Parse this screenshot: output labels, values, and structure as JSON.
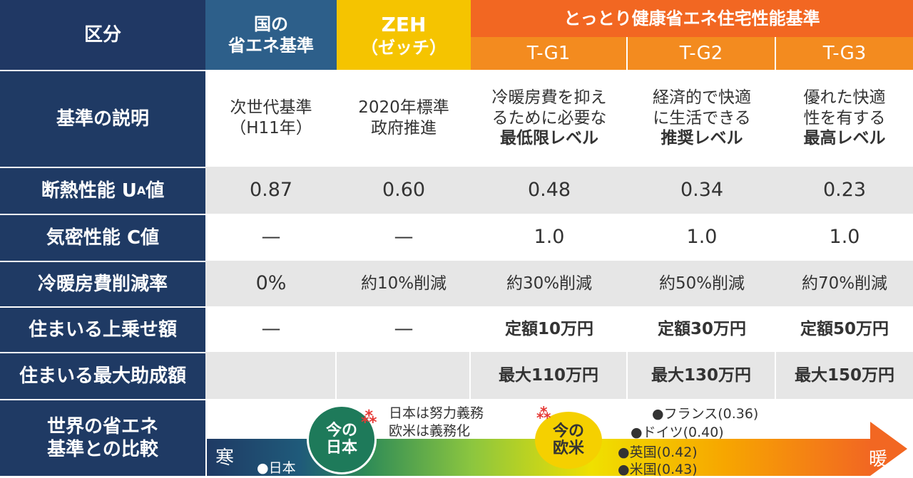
{
  "headers": {
    "category": "区分",
    "national": [
      "国の",
      "省エネ基準"
    ],
    "zeh": [
      "ZEH",
      "（ゼッチ）"
    ],
    "tottori": "とっとり健康省エネ住宅性能基準",
    "tg1": "T-G1",
    "tg2": "T-G2",
    "tg3": "T-G3"
  },
  "rows": {
    "desc": {
      "label": "基準の説明",
      "national": [
        "次世代基準",
        "（H11年）"
      ],
      "zeh": [
        "2020年標準",
        "政府推進"
      ],
      "tg1": [
        "冷暖房費を抑え",
        "るために必要な",
        "最低限レベル"
      ],
      "tg2": [
        "経済的で快適",
        "に生活できる",
        "推奨レベル"
      ],
      "tg3": [
        "優れた快適",
        "性を有する",
        "最高レベル"
      ]
    },
    "ua": {
      "label_main": "断熱性能 U",
      "label_sub": "A",
      "label_tail": "値",
      "national": "0.87",
      "zeh": "0.60",
      "tg1": "0.48",
      "tg2": "0.34",
      "tg3": "0.23"
    },
    "c": {
      "label": "気密性能 C値",
      "national": "—",
      "zeh": "—",
      "tg1": "1.0",
      "tg2": "1.0",
      "tg3": "1.0"
    },
    "reduce": {
      "label": "冷暖房費削減率",
      "national": "0%",
      "zeh": "約10%削減",
      "tg1": "約30%削減",
      "tg2": "約50%削減",
      "tg3": "約70%削減"
    },
    "extra": {
      "label": "住まいる上乗せ額",
      "national": "—",
      "zeh": "—",
      "tg1": "定額10万円",
      "tg2": "定額30万円",
      "tg3": "定額50万円"
    },
    "max": {
      "label": "住まいる最大助成額",
      "national": "",
      "zeh": "",
      "tg1": "最大110万円",
      "tg2": "最大130万円",
      "tg3": "最大150万円"
    },
    "world": {
      "label": [
        "世界の省エネ",
        "基準との比較"
      ]
    }
  },
  "world": {
    "cold": "寒",
    "warm": "暖",
    "japan_now": [
      "今の",
      "日本"
    ],
    "europe_now": [
      "今の",
      "欧米"
    ],
    "note1": "日本は努力義務",
    "note2": "欧米は義務化",
    "japan_point": "●日本",
    "france": "●フランス(0.36)",
    "germany": "●ドイツ(0.40)",
    "uk": "●英国(0.42)",
    "us": "●米国(0.43)"
  },
  "colors": {
    "header_navy": "#203864",
    "national_blue": "#2d5f8a",
    "zeh_yellow": "#f5c400",
    "tottori_orange": "#f26722",
    "japan_bubble": "#1e7a5a",
    "europe_bubble": "#f5d000"
  }
}
